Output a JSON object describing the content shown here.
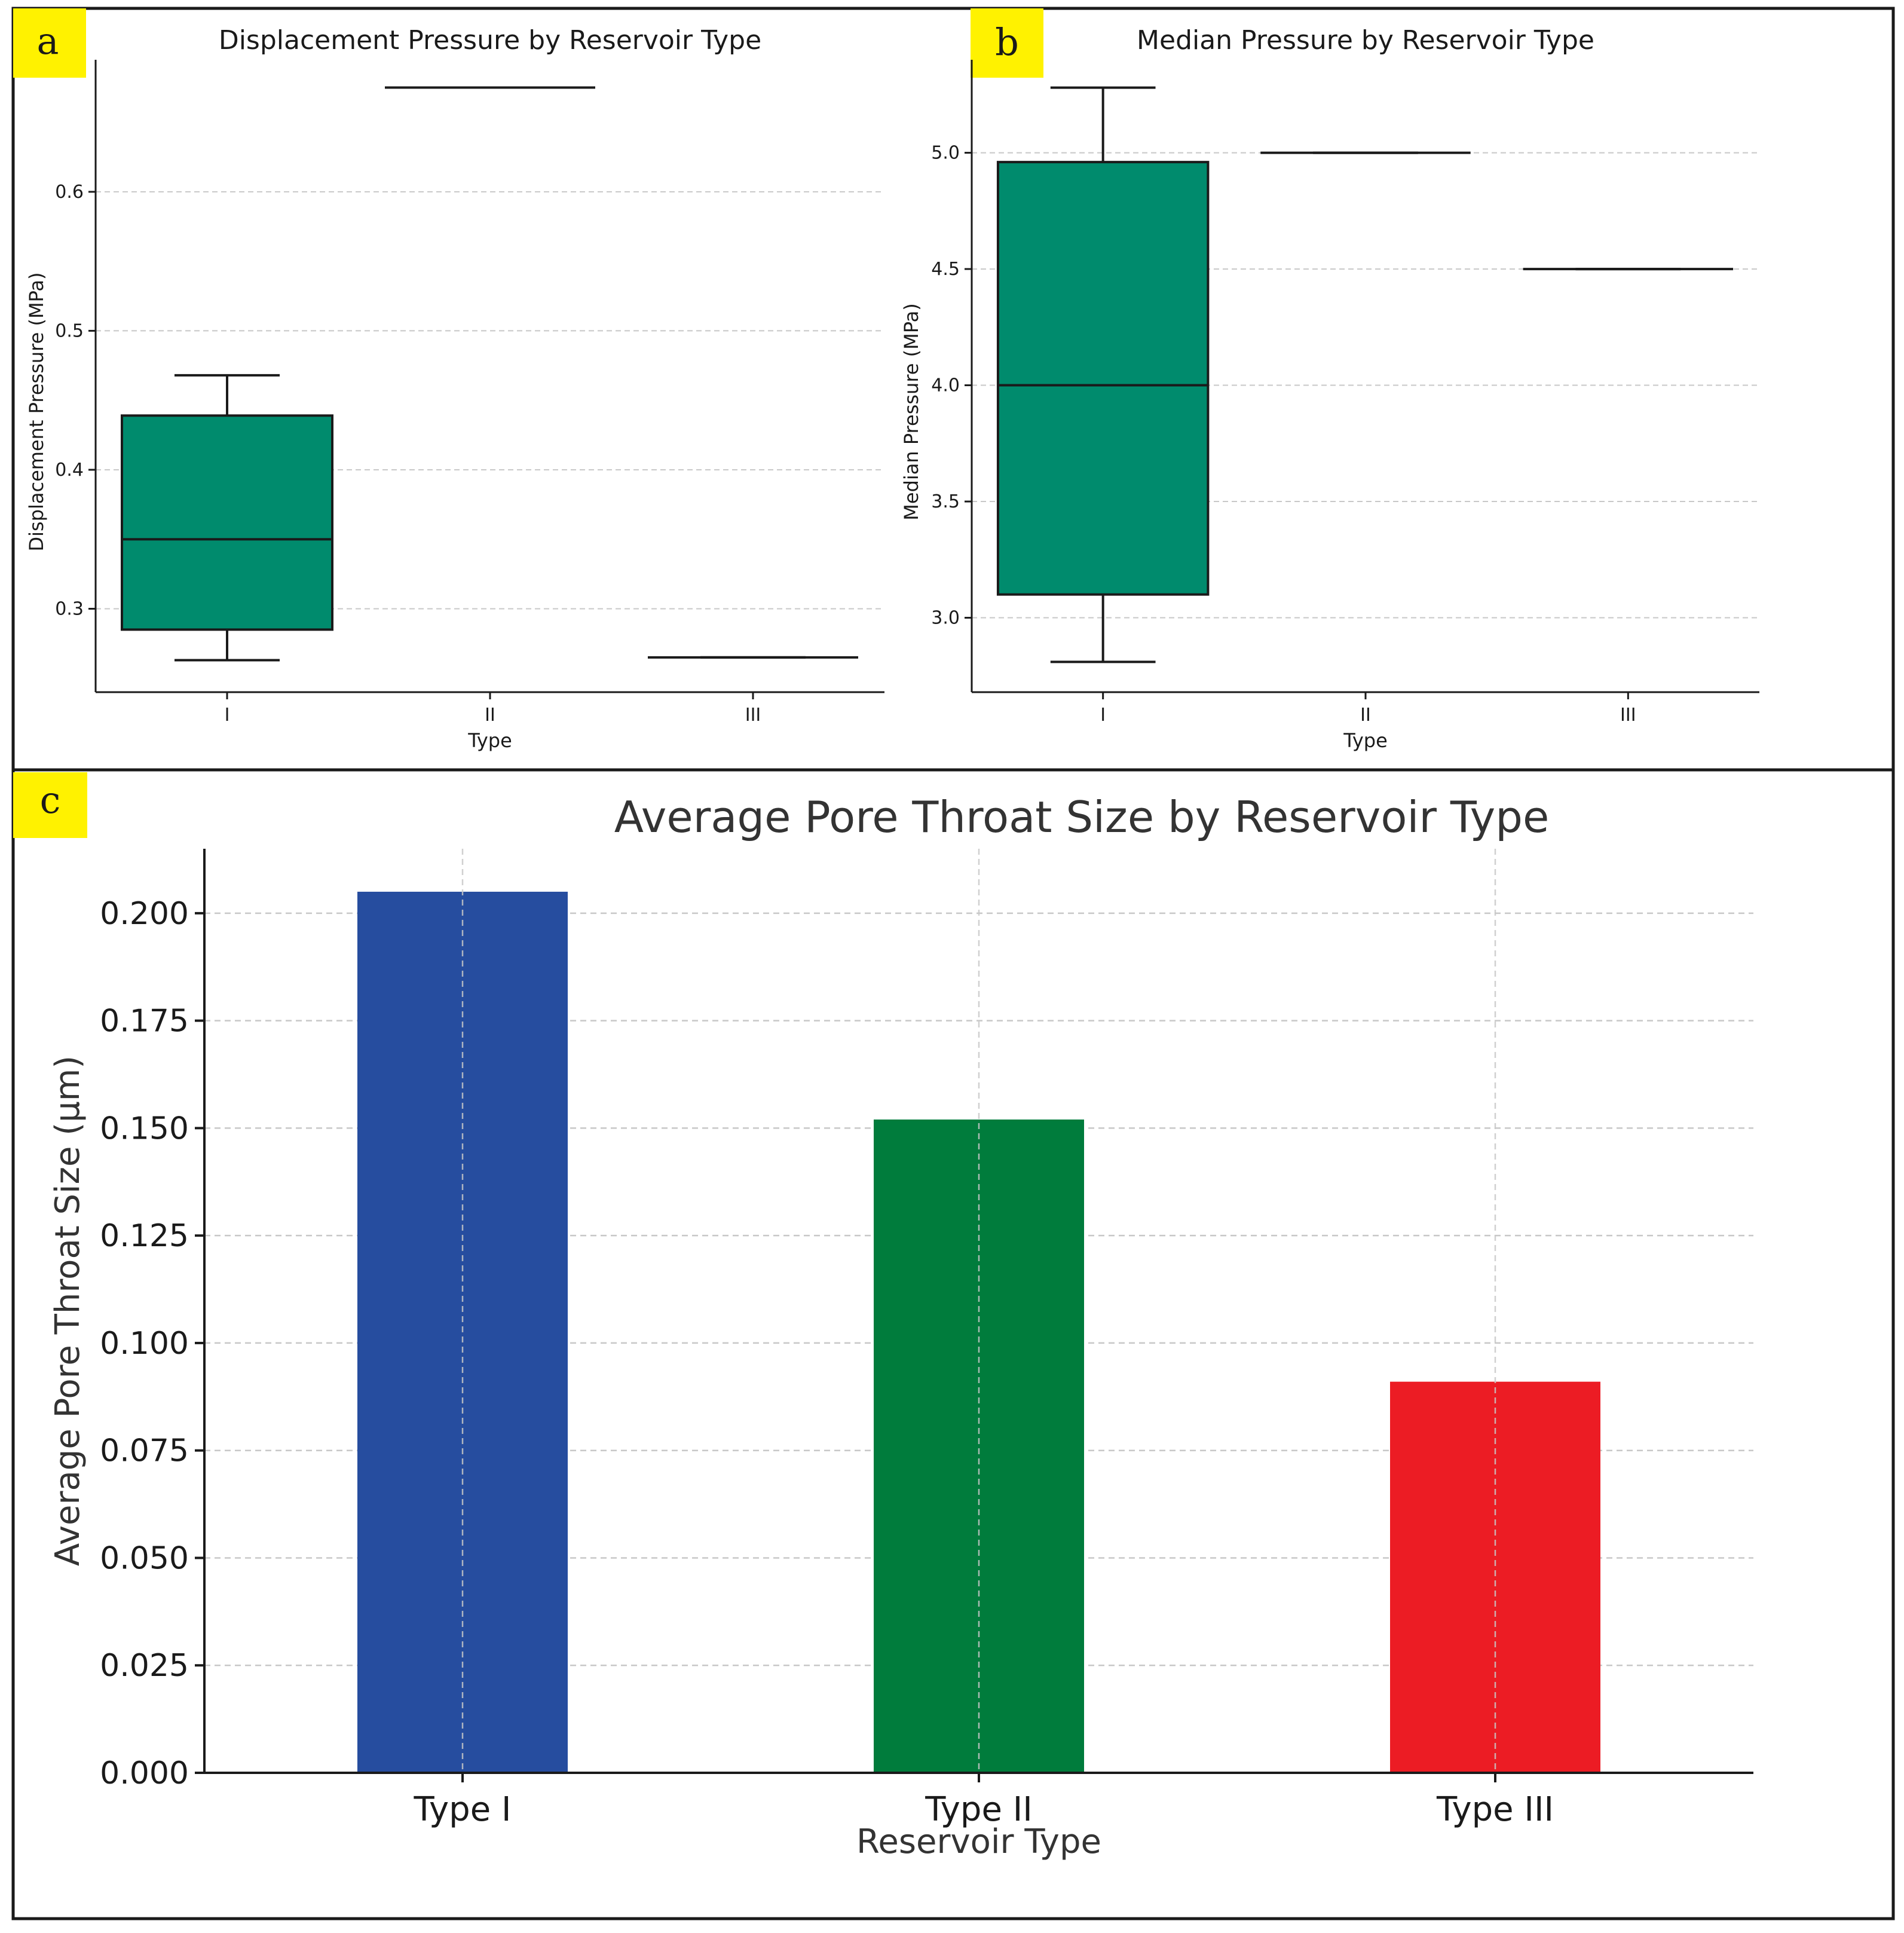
{
  "colors": {
    "border": "#1a1a1a",
    "box_fill": "#008b6d",
    "label_bg": "#fff200",
    "grid": "#c8c8c8",
    "text": "#1a1a1a"
  },
  "panels": [
    {
      "letter": "a"
    },
    {
      "letter": "b"
    },
    {
      "letter": "c"
    }
  ],
  "chart_data": [
    {
      "id": "a",
      "type": "box",
      "title": "Displacement Pressure by Reservoir Type",
      "xlabel": "Type",
      "ylabel": "Displacement Pressure (MPa)",
      "categories": [
        "I",
        "II",
        "III"
      ],
      "ylim": [
        0.24,
        0.695
      ],
      "yticks": [
        0.3,
        0.4,
        0.5,
        0.6
      ],
      "ytick_labels": [
        "0.3",
        "0.4",
        "0.5",
        "0.6"
      ],
      "grid": true,
      "boxes": [
        {
          "whislo": 0.263,
          "q1": 0.285,
          "median": 0.35,
          "q3": 0.439,
          "whishi": 0.468
        },
        {
          "whislo": 0.675,
          "q1": 0.675,
          "median": 0.675,
          "q3": 0.675,
          "whishi": 0.675
        },
        {
          "whislo": 0.265,
          "q1": 0.265,
          "median": 0.265,
          "q3": 0.265,
          "whishi": 0.265
        }
      ]
    },
    {
      "id": "b",
      "type": "box",
      "title": "Median Pressure by Reservoir Type",
      "xlabel": "Type",
      "ylabel": "Median Pressure (MPa)",
      "categories": [
        "I",
        "II",
        "III"
      ],
      "ylim": [
        2.68,
        5.4
      ],
      "yticks": [
        3.0,
        3.5,
        4.0,
        4.5,
        5.0
      ],
      "ytick_labels": [
        "3.0",
        "3.5",
        "4.0",
        "4.5",
        "5.0"
      ],
      "grid": true,
      "boxes": [
        {
          "whislo": 2.81,
          "q1": 3.1,
          "median": 4.0,
          "q3": 4.96,
          "whishi": 5.28
        },
        {
          "whislo": 5.0,
          "q1": 5.0,
          "median": 5.0,
          "q3": 5.0,
          "whishi": 5.0
        },
        {
          "whislo": 4.5,
          "q1": 4.5,
          "median": 4.5,
          "q3": 4.5,
          "whishi": 4.5
        }
      ]
    },
    {
      "id": "c",
      "type": "bar",
      "title": "Average Pore Throat Size by Reservoir Type",
      "xlabel": "Reservoir Type",
      "ylabel": "Average Pore Throat Size (μm)",
      "categories": [
        "Type I",
        "Type II",
        "Type III"
      ],
      "values": [
        0.205,
        0.152,
        0.091
      ],
      "colors": [
        "#264d9f",
        "#007c3c",
        "#ec1c24"
      ],
      "ylim": [
        0,
        0.215
      ],
      "yticks": [
        0,
        0.025,
        0.05,
        0.075,
        0.1,
        0.125,
        0.15,
        0.175,
        0.2
      ],
      "ytick_labels": [
        "0.000",
        "0.025",
        "0.050",
        "0.075",
        "0.100",
        "0.125",
        "0.150",
        "0.175",
        "0.200"
      ],
      "grid": true
    }
  ]
}
